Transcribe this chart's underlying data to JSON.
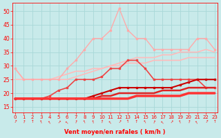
{
  "x": [
    0,
    1,
    2,
    3,
    4,
    5,
    6,
    7,
    8,
    9,
    10,
    11,
    12,
    13,
    14,
    15,
    16,
    17,
    18,
    19,
    20,
    21,
    22,
    23
  ],
  "lines": [
    {
      "y": [
        29,
        25,
        25,
        25,
        25,
        25,
        25,
        26,
        27,
        28,
        29,
        30,
        31,
        32,
        33,
        33,
        33,
        34,
        34,
        35,
        35,
        35,
        36,
        35
      ],
      "color": "#ffbbbb",
      "lw": 1.2,
      "marker": null,
      "ms": 0,
      "zorder": 2
    },
    {
      "y": [
        25,
        25,
        25,
        25,
        25,
        26,
        27,
        28,
        28,
        29,
        29,
        30,
        30,
        31,
        31,
        31,
        32,
        32,
        32,
        32,
        33,
        33,
        33,
        33
      ],
      "color": "#ffbbbb",
      "lw": 1.2,
      "marker": null,
      "ms": 0,
      "zorder": 2
    },
    {
      "y": [
        29,
        25,
        25,
        25,
        25,
        25,
        29,
        32,
        36,
        40,
        40,
        43,
        51,
        43,
        40,
        40,
        36,
        36,
        36,
        36,
        36,
        40,
        40,
        36
      ],
      "color": "#ffaaaa",
      "lw": 1.0,
      "marker": "s",
      "ms": 2.0,
      "zorder": 3
    },
    {
      "y": [
        18,
        18,
        18,
        18,
        19,
        21,
        22,
        25,
        25,
        25,
        26,
        29,
        29,
        32,
        32,
        29,
        25,
        25,
        25,
        25,
        25,
        25,
        22,
        22
      ],
      "color": "#ee4444",
      "lw": 1.2,
      "marker": "s",
      "ms": 2.0,
      "zorder": 4
    },
    {
      "y": [
        18,
        18,
        18,
        18,
        18,
        18,
        18,
        18,
        18,
        19,
        20,
        21,
        22,
        22,
        22,
        22,
        22,
        22,
        22,
        23,
        24,
        25,
        25,
        25
      ],
      "color": "#cc0000",
      "lw": 1.5,
      "marker": "s",
      "ms": 2.0,
      "zorder": 5
    },
    {
      "y": [
        18,
        18,
        18,
        18,
        18,
        18,
        18,
        18,
        18,
        18,
        19,
        19,
        20,
        20,
        20,
        20,
        20,
        21,
        21,
        21,
        22,
        22,
        22,
        22
      ],
      "color": "#dd2222",
      "lw": 1.8,
      "marker": null,
      "ms": 0,
      "zorder": 5
    },
    {
      "y": [
        18,
        18,
        18,
        18,
        18,
        18,
        18,
        18,
        18,
        18,
        18,
        18,
        18,
        18,
        19,
        19,
        19,
        19,
        19,
        19,
        20,
        20,
        20,
        20
      ],
      "color": "#ff3333",
      "lw": 2.5,
      "marker": null,
      "ms": 0,
      "zorder": 6
    }
  ],
  "xlabel": "Vent moyen/en rafales ( km/h )",
  "ylim": [
    13,
    53
  ],
  "yticks": [
    15,
    20,
    25,
    30,
    35,
    40,
    45,
    50
  ],
  "xlim": [
    -0.3,
    23.3
  ],
  "xticks": [
    0,
    1,
    2,
    3,
    4,
    5,
    6,
    7,
    8,
    9,
    10,
    11,
    12,
    13,
    14,
    15,
    16,
    17,
    18,
    19,
    20,
    21,
    22,
    23
  ],
  "bg_color": "#c8eaea",
  "grid_color": "#a8d8d8",
  "tick_color": "#ff0000",
  "label_color": "#ff0000"
}
